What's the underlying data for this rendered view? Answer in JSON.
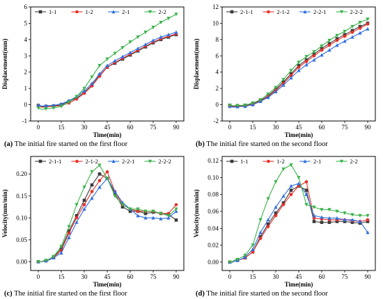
{
  "chart_data": [
    {
      "type": "line",
      "panel_label": "(a)",
      "caption": "The initial fire started on the first floor",
      "xlabel": "Time(min)",
      "ylabel": "Displacement(mm)",
      "xlim": [
        -5,
        95
      ],
      "ylim": [
        -1,
        6
      ],
      "xticks": [
        0,
        15,
        30,
        45,
        60,
        75,
        90
      ],
      "yticks": [
        -1,
        0,
        1,
        2,
        3,
        4,
        5,
        6
      ],
      "legend_position": "top",
      "series": [
        {
          "name": "1-1",
          "color": "#3a3a3a",
          "marker": "square",
          "x": [
            0,
            1,
            2,
            3,
            5,
            10,
            15,
            20,
            25,
            30,
            35,
            40,
            45,
            50,
            55,
            60,
            65,
            70,
            75,
            80,
            85,
            90
          ],
          "y": [
            -0.05,
            -0.1,
            -0.12,
            -0.12,
            -0.1,
            -0.08,
            0.0,
            0.2,
            0.4,
            0.75,
            1.2,
            1.8,
            2.3,
            2.55,
            2.8,
            3.05,
            3.3,
            3.55,
            3.8,
            4.0,
            4.15,
            4.3
          ]
        },
        {
          "name": "1-2",
          "color": "#e8302a",
          "marker": "circle",
          "x": [
            0,
            1,
            2,
            3,
            5,
            10,
            15,
            20,
            25,
            30,
            35,
            40,
            45,
            50,
            55,
            60,
            65,
            70,
            75,
            80,
            85,
            90
          ],
          "y": [
            -0.08,
            -0.12,
            -0.15,
            -0.15,
            -0.12,
            -0.1,
            -0.05,
            0.1,
            0.35,
            0.7,
            1.15,
            1.75,
            2.3,
            2.6,
            2.85,
            3.1,
            3.35,
            3.6,
            3.85,
            4.05,
            4.2,
            4.35
          ]
        },
        {
          "name": "2-1",
          "color": "#2f6fe0",
          "marker": "triangle-up",
          "x": [
            0,
            1,
            2,
            3,
            5,
            10,
            15,
            20,
            25,
            30,
            35,
            40,
            45,
            50,
            55,
            60,
            65,
            70,
            75,
            80,
            85,
            90
          ],
          "y": [
            -0.02,
            -0.05,
            -0.08,
            -0.08,
            -0.06,
            -0.04,
            0.05,
            0.25,
            0.5,
            0.85,
            1.3,
            1.9,
            2.4,
            2.7,
            2.95,
            3.2,
            3.45,
            3.7,
            3.95,
            4.15,
            4.3,
            4.45
          ]
        },
        {
          "name": "2-2",
          "color": "#3ab34a",
          "marker": "triangle-down",
          "x": [
            0,
            1,
            2,
            3,
            5,
            10,
            15,
            20,
            25,
            30,
            35,
            40,
            45,
            50,
            55,
            60,
            65,
            70,
            75,
            80,
            85,
            90
          ],
          "y": [
            -0.2,
            -0.25,
            -0.28,
            -0.28,
            -0.25,
            -0.2,
            -0.1,
            0.15,
            0.5,
            1.0,
            1.7,
            2.4,
            2.8,
            3.15,
            3.5,
            3.85,
            4.15,
            4.45,
            4.75,
            5.05,
            5.3,
            5.55
          ]
        }
      ]
    },
    {
      "type": "line",
      "panel_label": "(b)",
      "caption": "The initial fire started on the second floor",
      "xlabel": "Time(min)",
      "ylabel": "Displacement(mm)",
      "xlim": [
        -5,
        95
      ],
      "ylim": [
        -2,
        12
      ],
      "xticks": [
        0,
        15,
        30,
        45,
        60,
        75,
        90
      ],
      "yticks": [
        -2,
        0,
        2,
        4,
        6,
        8,
        10,
        12
      ],
      "legend_position": "top",
      "series": [
        {
          "name": "2-1-1",
          "color": "#3a3a3a",
          "marker": "square",
          "x": [
            0,
            1,
            2,
            3,
            5,
            10,
            15,
            20,
            25,
            30,
            35,
            40,
            45,
            50,
            55,
            60,
            65,
            70,
            75,
            80,
            85,
            90
          ],
          "y": [
            -0.1,
            -0.15,
            -0.2,
            -0.2,
            -0.15,
            -0.1,
            0.1,
            0.5,
            1.1,
            1.9,
            2.8,
            3.8,
            4.8,
            5.5,
            6.2,
            6.9,
            7.5,
            8.1,
            8.6,
            9.1,
            9.6,
            10.0
          ]
        },
        {
          "name": "2-1-2",
          "color": "#e8302a",
          "marker": "circle",
          "x": [
            0,
            1,
            2,
            3,
            5,
            10,
            15,
            20,
            25,
            30,
            35,
            40,
            45,
            50,
            55,
            60,
            65,
            70,
            75,
            80,
            85,
            90
          ],
          "y": [
            -0.15,
            -0.2,
            -0.25,
            -0.25,
            -0.2,
            -0.15,
            0.05,
            0.45,
            1.0,
            1.75,
            2.6,
            3.6,
            4.6,
            5.3,
            6.0,
            6.7,
            7.3,
            7.9,
            8.4,
            8.9,
            9.4,
            9.9
          ]
        },
        {
          "name": "2-2-1",
          "color": "#2f6fe0",
          "marker": "triangle-up",
          "x": [
            0,
            1,
            2,
            3,
            5,
            10,
            15,
            20,
            25,
            30,
            35,
            40,
            45,
            50,
            55,
            60,
            65,
            70,
            75,
            80,
            85,
            90
          ],
          "y": [
            -0.2,
            -0.25,
            -0.3,
            -0.3,
            -0.25,
            -0.2,
            0.0,
            0.4,
            0.9,
            1.6,
            2.4,
            3.3,
            4.2,
            4.9,
            5.5,
            6.1,
            6.7,
            7.3,
            7.8,
            8.3,
            8.8,
            9.3
          ]
        },
        {
          "name": "2-2-2",
          "color": "#3ab34a",
          "marker": "triangle-down",
          "x": [
            0,
            1,
            2,
            3,
            5,
            10,
            15,
            20,
            25,
            30,
            35,
            40,
            45,
            50,
            55,
            60,
            65,
            70,
            75,
            80,
            85,
            90
          ],
          "y": [
            -0.05,
            -0.1,
            -0.12,
            -0.12,
            -0.1,
            -0.05,
            0.2,
            0.6,
            1.3,
            2.1,
            3.1,
            4.2,
            5.2,
            5.9,
            6.5,
            7.2,
            7.9,
            8.5,
            9.0,
            9.6,
            10.1,
            10.5
          ]
        }
      ]
    },
    {
      "type": "line",
      "panel_label": "(c)",
      "caption": "The initial fire started on the first floor",
      "xlabel": "Time(min)",
      "ylabel": "Velocity(mm/min)",
      "xlim": [
        -5,
        95
      ],
      "ylim": [
        -0.02,
        0.24
      ],
      "xticks": [
        0,
        15,
        30,
        45,
        60,
        75,
        90
      ],
      "yticks": [
        0.0,
        0.05,
        0.1,
        0.15,
        0.2
      ],
      "ytick_labels": [
        "0.00",
        "0.05",
        "0.10",
        "0.15",
        "0.20"
      ],
      "legend_position": "top",
      "series": [
        {
          "name": "2-1-1",
          "color": "#3a3a3a",
          "marker": "square",
          "x": [
            0,
            1,
            2,
            3,
            5,
            7,
            10,
            15,
            20,
            25,
            30,
            35,
            40,
            45,
            50,
            55,
            60,
            65,
            70,
            75,
            80,
            85,
            90
          ],
          "y": [
            0.0,
            0.0,
            0.0,
            0.001,
            0.002,
            0.004,
            0.01,
            0.03,
            0.07,
            0.105,
            0.14,
            0.175,
            0.2,
            0.19,
            0.155,
            0.125,
            0.115,
            0.115,
            0.11,
            0.113,
            0.11,
            0.108,
            0.095
          ]
        },
        {
          "name": "2-1-2",
          "color": "#e8302a",
          "marker": "circle",
          "x": [
            0,
            1,
            2,
            3,
            5,
            7,
            10,
            15,
            20,
            25,
            30,
            35,
            40,
            45,
            50,
            55,
            60,
            65,
            70,
            75,
            80,
            85,
            90
          ],
          "y": [
            0.0,
            0.0,
            0.0,
            0.001,
            0.002,
            0.004,
            0.01,
            0.025,
            0.065,
            0.1,
            0.13,
            0.16,
            0.185,
            0.205,
            0.16,
            0.13,
            0.12,
            0.115,
            0.115,
            0.115,
            0.11,
            0.11,
            0.13
          ]
        },
        {
          "name": "2-2-1",
          "color": "#2f6fe0",
          "marker": "triangle-up",
          "x": [
            0,
            1,
            2,
            3,
            5,
            7,
            10,
            15,
            20,
            25,
            30,
            35,
            40,
            45,
            50,
            55,
            60,
            65,
            70,
            75,
            80,
            85,
            90
          ],
          "y": [
            0.0,
            0.0,
            0.0,
            0.001,
            0.002,
            0.004,
            0.009,
            0.02,
            0.055,
            0.09,
            0.12,
            0.145,
            0.17,
            0.19,
            0.16,
            0.135,
            0.12,
            0.105,
            0.1,
            0.1,
            0.098,
            0.1,
            0.115
          ]
        },
        {
          "name": "2-2-2",
          "color": "#3ab34a",
          "marker": "triangle-down",
          "x": [
            0,
            1,
            2,
            3,
            5,
            7,
            10,
            15,
            20,
            25,
            30,
            35,
            40,
            45,
            50,
            55,
            60,
            65,
            70,
            75,
            80,
            85,
            90
          ],
          "y": [
            0.0,
            0.0,
            0.0,
            0.002,
            0.003,
            0.006,
            0.012,
            0.035,
            0.08,
            0.13,
            0.17,
            0.205,
            0.22,
            0.19,
            0.15,
            0.13,
            0.12,
            0.12,
            0.115,
            0.115,
            0.11,
            0.105,
            0.12
          ]
        }
      ]
    },
    {
      "type": "line",
      "panel_label": "(d)",
      "caption": "The initial fire started on the second floor",
      "xlabel": "Time(min)",
      "ylabel": "Velocity(mm/min)",
      "xlim": [
        -5,
        95
      ],
      "ylim": [
        -0.01,
        0.125
      ],
      "xticks": [
        0,
        15,
        30,
        45,
        60,
        75,
        90
      ],
      "yticks": [
        0.0,
        0.02,
        0.04,
        0.06,
        0.08,
        0.1,
        0.12
      ],
      "ytick_labels": [
        "0.00",
        "0.02",
        "0.04",
        "0.06",
        "0.08",
        "0.10",
        "0.12"
      ],
      "legend_position": "top",
      "series": [
        {
          "name": "1-1",
          "color": "#3a3a3a",
          "marker": "square",
          "x": [
            0,
            1,
            2,
            3,
            5,
            7,
            10,
            15,
            20,
            25,
            30,
            35,
            40,
            45,
            50,
            55,
            60,
            65,
            70,
            75,
            80,
            85,
            90
          ],
          "y": [
            0.0,
            0.0,
            0.0,
            0.001,
            0.002,
            0.003,
            0.005,
            0.012,
            0.03,
            0.045,
            0.058,
            0.07,
            0.085,
            0.09,
            0.085,
            0.048,
            0.047,
            0.047,
            0.048,
            0.048,
            0.047,
            0.046,
            0.048
          ]
        },
        {
          "name": "1-2",
          "color": "#e8302a",
          "marker": "circle",
          "x": [
            0,
            1,
            2,
            3,
            5,
            7,
            10,
            15,
            20,
            25,
            30,
            35,
            40,
            45,
            50,
            55,
            60,
            65,
            70,
            75,
            80,
            85,
            90
          ],
          "y": [
            0.0,
            0.0,
            0.0,
            0.001,
            0.002,
            0.003,
            0.005,
            0.012,
            0.028,
            0.042,
            0.055,
            0.068,
            0.08,
            0.09,
            0.095,
            0.052,
            0.051,
            0.05,
            0.05,
            0.05,
            0.049,
            0.048,
            0.05
          ]
        },
        {
          "name": "2-1",
          "color": "#2f6fe0",
          "marker": "triangle-up",
          "x": [
            0,
            1,
            2,
            3,
            5,
            7,
            10,
            15,
            20,
            25,
            30,
            35,
            40,
            45,
            50,
            55,
            60,
            65,
            70,
            75,
            80,
            85,
            90
          ],
          "y": [
            0.0,
            0.0,
            0.0,
            0.001,
            0.002,
            0.003,
            0.006,
            0.015,
            0.035,
            0.05,
            0.065,
            0.078,
            0.09,
            0.093,
            0.08,
            0.055,
            0.053,
            0.052,
            0.052,
            0.05,
            0.05,
            0.048,
            0.035
          ]
        },
        {
          "name": "2-2",
          "color": "#3ab34a",
          "marker": "triangle-down",
          "x": [
            0,
            1,
            2,
            3,
            5,
            7,
            10,
            15,
            20,
            25,
            30,
            35,
            40,
            45,
            50,
            55,
            60,
            65,
            70,
            75,
            80,
            85,
            90
          ],
          "y": [
            0.0,
            0.0,
            0.001,
            0.002,
            0.003,
            0.005,
            0.008,
            0.02,
            0.05,
            0.075,
            0.095,
            0.11,
            0.115,
            0.1,
            0.068,
            0.065,
            0.062,
            0.062,
            0.06,
            0.058,
            0.056,
            0.055,
            0.055
          ]
        }
      ]
    }
  ]
}
